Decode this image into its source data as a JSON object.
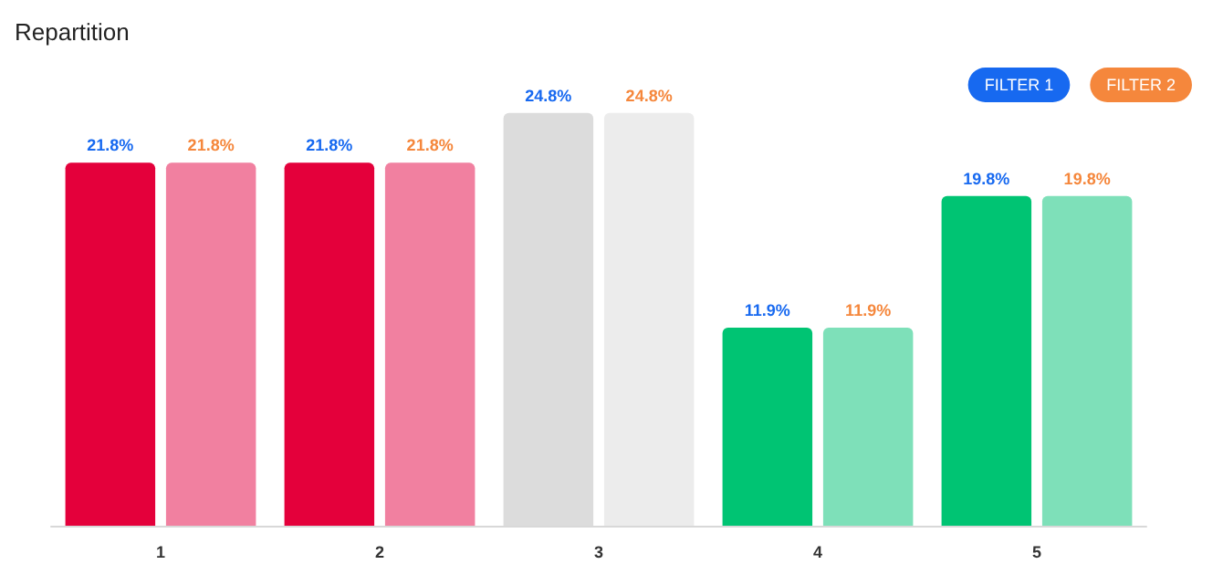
{
  "chart_data": {
    "type": "bar",
    "title": "Repartition",
    "categories": [
      "1",
      "2",
      "3",
      "4",
      "5"
    ],
    "series": [
      {
        "name": "FILTER 1",
        "color": "#1769f0",
        "colors": [
          "#e4003b",
          "#e4003b",
          "#dcdcdc",
          "#00c473",
          "#00c473"
        ],
        "values": [
          21.8,
          21.8,
          24.8,
          11.9,
          19.8
        ],
        "value_labels": [
          "21.8%",
          "21.8%",
          "24.8%",
          "11.9%",
          "19.8%"
        ]
      },
      {
        "name": "FILTER 2",
        "color": "#f5873c",
        "colors": [
          "#f180a0",
          "#f180a0",
          "#ececec",
          "#7ee0b9",
          "#7ee0b9"
        ],
        "values": [
          21.8,
          21.8,
          24.8,
          11.9,
          19.8
        ],
        "value_labels": [
          "21.8%",
          "21.8%",
          "24.8%",
          "11.9%",
          "19.8%"
        ]
      }
    ],
    "grid": false,
    "legend": "top right"
  }
}
